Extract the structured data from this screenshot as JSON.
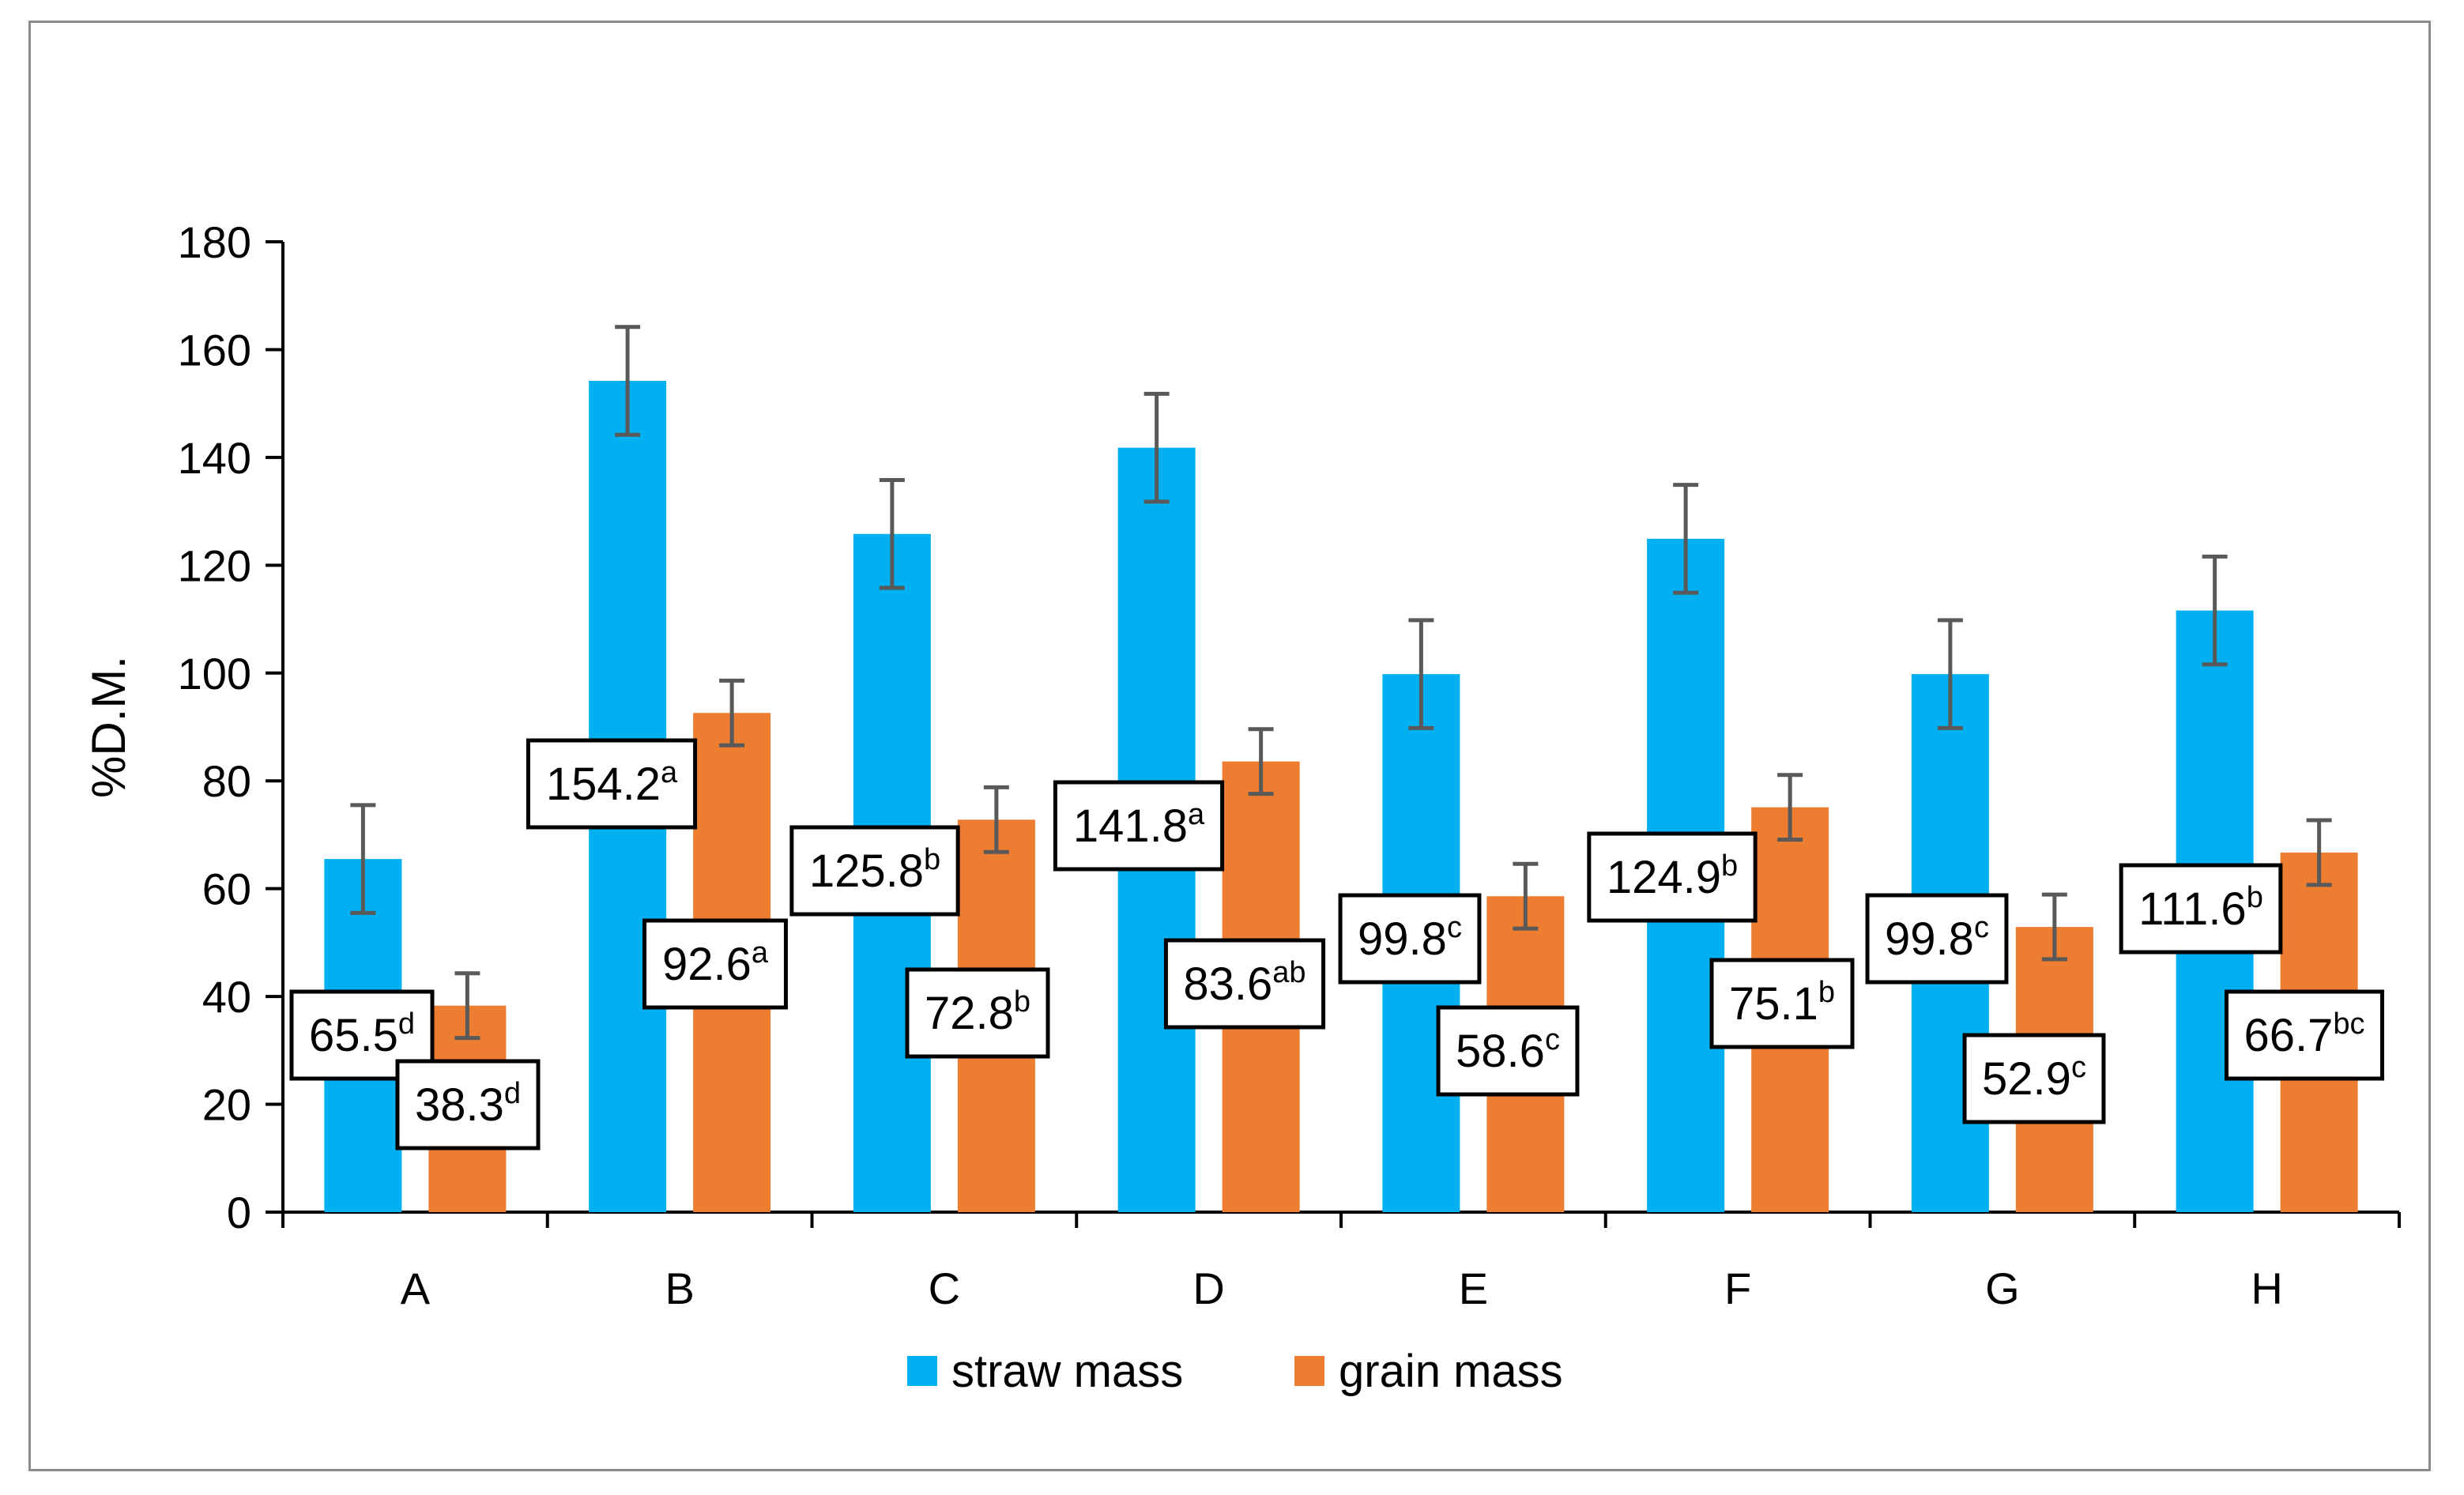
{
  "chart_data": {
    "type": "bar",
    "categories": [
      "A",
      "B",
      "C",
      "D",
      "E",
      "F",
      "G",
      "H"
    ],
    "series": [
      {
        "name": "straw mass",
        "color": "#00b0f0",
        "values": [
          65.5,
          154.2,
          125.8,
          141.8,
          99.8,
          124.9,
          99.8,
          111.6
        ],
        "error": [
          10,
          10,
          10,
          10,
          10,
          10,
          10,
          10
        ],
        "labels": [
          "65.5",
          "154.2",
          "125.8",
          "141.8",
          "99.8",
          "124.9",
          "99.8",
          "111.6"
        ],
        "letters": [
          "d",
          "a",
          "b",
          "a",
          "c",
          "b",
          "c",
          "b"
        ]
      },
      {
        "name": "grain mass",
        "color": "#ed7d31",
        "values": [
          38.3,
          92.6,
          72.8,
          83.6,
          58.6,
          75.1,
          52.9,
          66.7
        ],
        "error": [
          6,
          6,
          6,
          6,
          6,
          6,
          6,
          6
        ],
        "labels": [
          "38.3",
          "92.6",
          "72.8",
          "83.6",
          "58.6",
          "75.1",
          "52.9",
          "66.7"
        ],
        "letters": [
          "d",
          "a",
          "b",
          "ab",
          "c",
          "b",
          "c",
          "bc"
        ]
      }
    ],
    "ylabel": "%D.M.",
    "xlabel": "",
    "ylim": [
      0,
      180
    ],
    "yticks": [
      0,
      20,
      40,
      60,
      80,
      100,
      120,
      140,
      160,
      180
    ],
    "grid": false,
    "legend_position": "bottom",
    "error_bar_color": "#595959"
  }
}
